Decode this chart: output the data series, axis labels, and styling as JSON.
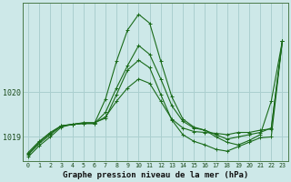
{
  "title": "Graphe pression niveau de la mer (hPa)",
  "background_color": "#cde8e8",
  "grid_color": "#aacfcf",
  "line_color": "#1a6b1a",
  "hours": [
    0,
    1,
    2,
    3,
    4,
    5,
    6,
    7,
    8,
    9,
    10,
    11,
    12,
    13,
    14,
    15,
    16,
    17,
    18,
    19,
    20,
    21,
    22,
    23
  ],
  "series": [
    [
      1018.6,
      1018.85,
      1019.05,
      1019.25,
      1019.28,
      1019.3,
      1019.3,
      1019.55,
      1020.1,
      1020.6,
      1021.05,
      1020.85,
      1020.3,
      1019.7,
      1019.35,
      1019.2,
      1019.15,
      1019.05,
      1018.95,
      1019.0,
      1019.05,
      1019.1,
      1019.2,
      1021.15
    ],
    [
      1018.65,
      1018.9,
      1019.1,
      1019.25,
      1019.28,
      1019.3,
      1019.3,
      1019.85,
      1020.7,
      1021.4,
      1021.75,
      1021.55,
      1020.7,
      1019.9,
      1019.4,
      1019.22,
      1019.15,
      1019.0,
      1018.88,
      1018.82,
      1018.92,
      1019.05,
      1019.8,
      1021.15
    ],
    [
      1018.55,
      1018.8,
      1019.0,
      1019.22,
      1019.28,
      1019.32,
      1019.32,
      1019.42,
      1019.95,
      1020.5,
      1020.72,
      1020.55,
      1019.95,
      1019.38,
      1019.05,
      1018.9,
      1018.82,
      1018.72,
      1018.68,
      1018.78,
      1018.88,
      1018.98,
      1019.0,
      1021.15
    ],
    [
      1018.62,
      1018.88,
      1019.08,
      1019.24,
      1019.28,
      1019.31,
      1019.31,
      1019.45,
      1019.8,
      1020.1,
      1020.3,
      1020.2,
      1019.8,
      1019.4,
      1019.2,
      1019.12,
      1019.1,
      1019.08,
      1019.05,
      1019.1,
      1019.1,
      1019.15,
      1019.18,
      1021.15
    ]
  ],
  "ylim": [
    1018.45,
    1022.0
  ],
  "yticks": [
    1019,
    1020
  ],
  "xlim": [
    -0.5,
    23.5
  ],
  "figsize": [
    3.2,
    2.0
  ],
  "dpi": 100
}
